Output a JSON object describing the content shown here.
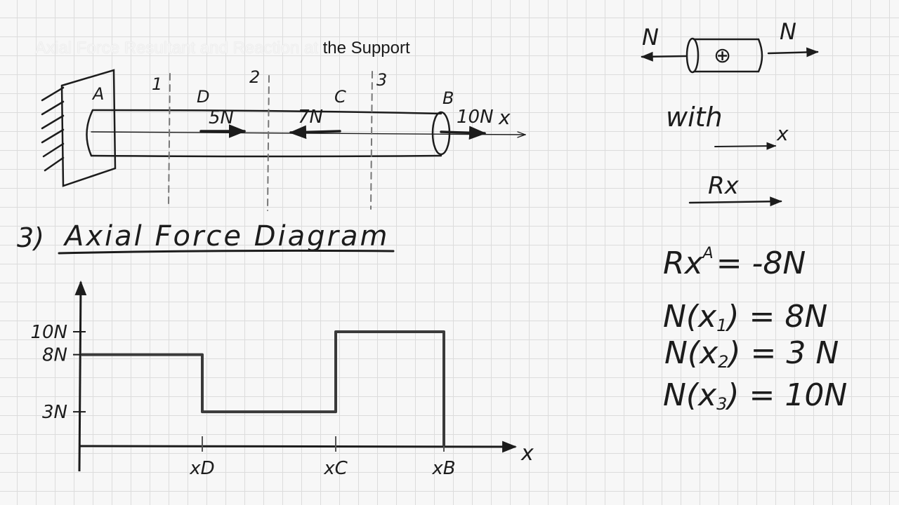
{
  "video_title": {
    "faded": "Axial Force Resultant and Reaction at",
    "visible": "the Support"
  },
  "beam_sketch": {
    "point_a": "A",
    "point_b": "B",
    "point_c": "C",
    "point_d": "D",
    "section_1": "1",
    "section_2": "2",
    "section_3": "3",
    "force_d": "5N",
    "force_c": "7N",
    "force_b": "10N",
    "axis_x": "x"
  },
  "diagram_heading": {
    "number": "3)",
    "text": "Axial Force Diagram"
  },
  "chart_data": {
    "type": "line",
    "title": "Axial Force Diagram",
    "xlabel": "x",
    "ylabel": "",
    "x_ticks": [
      "xD",
      "xC",
      "xB"
    ],
    "y_ticks": [
      "10N",
      "8N",
      "3N"
    ],
    "series": [
      {
        "x": [
          "0",
          "xD",
          "xD",
          "xC",
          "xC",
          "xB",
          "xB"
        ],
        "values": [
          8,
          8,
          3,
          3,
          10,
          10,
          0
        ]
      }
    ],
    "ylim": [
      0,
      12
    ]
  },
  "sign_convention": {
    "n_left": "N",
    "n_right": "N",
    "plus_sign": "⊕",
    "with_label": "with",
    "x_label": "x",
    "rx_label": "Rx"
  },
  "equations": {
    "reaction": "Rx^A = -8N",
    "reaction_main": "Rx",
    "reaction_super": "A",
    "reaction_rhs": "= -8N",
    "n_x1_lhs": "N(x",
    "n_x1_sub": "1",
    "n_x1_rhs": ") = 8N",
    "n_x2_lhs": "N(x",
    "n_x2_sub": "2",
    "n_x2_rhs": ") = 3 N",
    "n_x3_lhs": "N(x",
    "n_x3_sub": "3",
    "n_x3_rhs": ") = 10N"
  }
}
